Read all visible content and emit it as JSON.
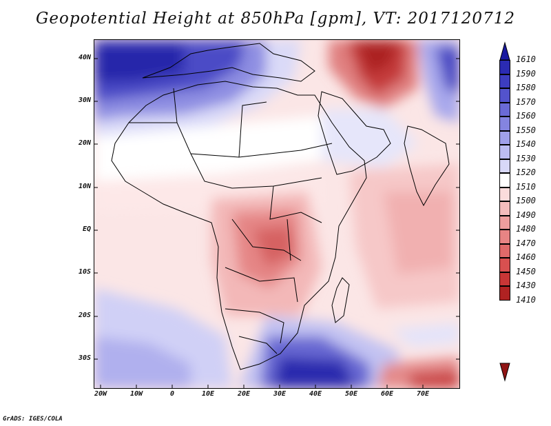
{
  "title": "Geopotential Height at 850hPa [gpm], VT: 2017120712",
  "footer": "GrADS: IGES/COLA",
  "lat_labels": [
    "40N",
    "30N",
    "20N",
    "10N",
    "EQ",
    "10S",
    "20S",
    "30S"
  ],
  "lon_labels": [
    "20W",
    "10W",
    "0",
    "10E",
    "20E",
    "30E",
    "40E",
    "50E",
    "60E",
    "70E"
  ],
  "colorbar": {
    "labels": [
      "1610",
      "1590",
      "1580",
      "1570",
      "1560",
      "1550",
      "1540",
      "1530",
      "1520",
      "1510",
      "1500",
      "1490",
      "1480",
      "1470",
      "1460",
      "1450",
      "1430",
      "1410"
    ],
    "colors": [
      "#1a1aa0",
      "#2b2bb2",
      "#3d3dc0",
      "#5353cc",
      "#6a6ad6",
      "#8484e0",
      "#a0a0ea",
      "#bcbcf2",
      "#d8d8f8",
      "#ffffff",
      "#fbdcdc",
      "#f4bcbc",
      "#ee9e9e",
      "#e88484",
      "#e06a6a",
      "#d85050",
      "#c83636",
      "#b02222",
      "#901414"
    ]
  }
}
